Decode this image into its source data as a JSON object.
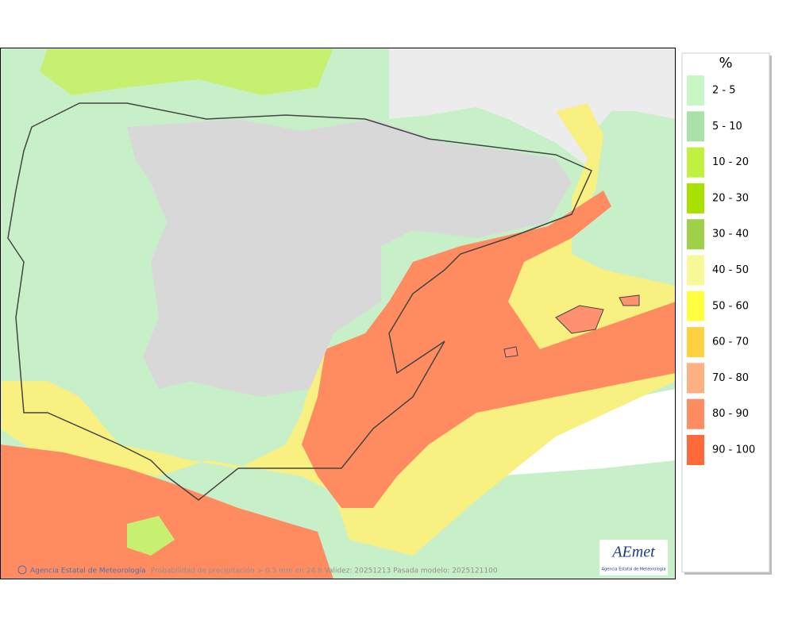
{
  "legend": {
    "title": "%",
    "items": [
      {
        "label": "2 - 5",
        "color": "#c8f7c5"
      },
      {
        "label": "5 - 10",
        "color": "#a8e2a8"
      },
      {
        "label": "10 - 20",
        "color": "#c0f040"
      },
      {
        "label": "20 - 30",
        "color": "#a8e000"
      },
      {
        "label": "30 - 40",
        "color": "#a0d048"
      },
      {
        "label": "40 - 50",
        "color": "#f8f898"
      },
      {
        "label": "50 - 60",
        "color": "#ffff40"
      },
      {
        "label": "60 - 70",
        "color": "#ffd040"
      },
      {
        "label": "70 - 80",
        "color": "#ffb080"
      },
      {
        "label": "80 - 90",
        "color": "#ff8c60"
      },
      {
        "label": "90 - 100",
        "color": "#ff6838"
      }
    ]
  },
  "footer": {
    "credit": "Agencia Estatal de Meteorología",
    "caption": "Probabilidad de precipitación > 0.5 mm en 24 h Validez: 20251213 Pasada modelo: 2025121100"
  },
  "logo": {
    "name": "AEmet",
    "subtitle": "Agencia Estatal de Meteorología"
  }
}
